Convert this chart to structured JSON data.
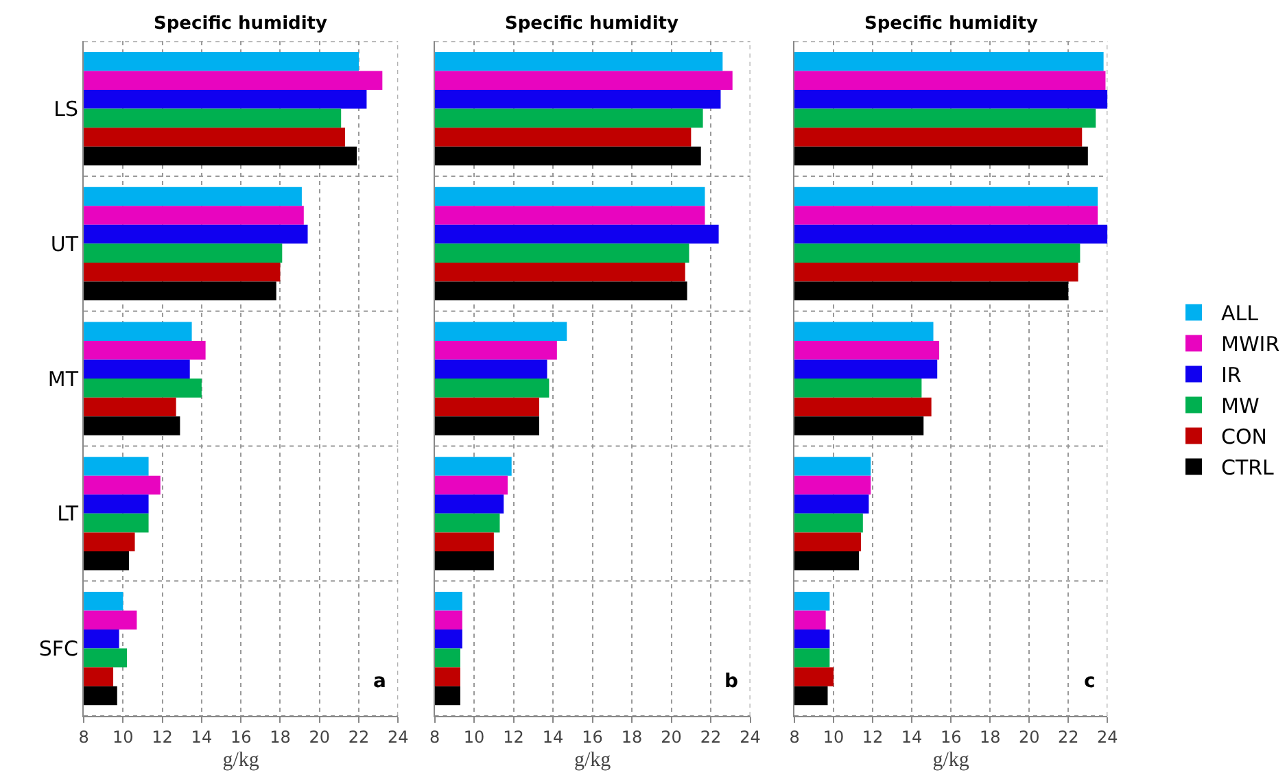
{
  "chart_data": [
    {
      "type": "bar",
      "orientation": "horizontal",
      "title": "Specific humidity",
      "xlabel": "g/kg",
      "categories": [
        "LS",
        "UT",
        "MT",
        "LT",
        "SFC"
      ],
      "xlim": [
        8,
        24
      ],
      "xticks": [
        8,
        10,
        12,
        14,
        16,
        18,
        20,
        22,
        24
      ],
      "grid": true,
      "legend": "right",
      "annotations": [
        "a"
      ],
      "series": [
        {
          "name": "ALL",
          "color": "#00b0f0",
          "values": [
            22.0,
            19.1,
            13.5,
            11.3,
            10.0
          ]
        },
        {
          "name": "MWIR",
          "color": "#e805bf",
          "values": [
            23.2,
            19.2,
            14.2,
            11.9,
            10.7
          ]
        },
        {
          "name": "IR",
          "color": "#1000f0",
          "values": [
            22.4,
            19.4,
            13.4,
            11.3,
            9.8
          ]
        },
        {
          "name": "MW",
          "color": "#00b050",
          "values": [
            21.1,
            18.1,
            14.0,
            11.3,
            10.2
          ]
        },
        {
          "name": "CON",
          "color": "#c00000",
          "values": [
            21.3,
            18.0,
            12.7,
            10.6,
            9.5
          ]
        },
        {
          "name": "CTRL",
          "color": "#000000",
          "values": [
            21.9,
            17.8,
            12.9,
            10.3,
            9.7
          ]
        }
      ]
    },
    {
      "type": "bar",
      "orientation": "horizontal",
      "title": "Specific humidity",
      "xlabel": "g/kg",
      "categories": [
        null,
        null,
        null,
        null,
        null
      ],
      "xlim": [
        8,
        24
      ],
      "xticks": [
        8,
        10,
        12,
        14,
        16,
        18,
        20,
        22,
        24
      ],
      "grid": true,
      "tick_labels": "x",
      "annotations": [
        "b"
      ],
      "series": [
        {
          "color": "#00b0f0",
          "values": [
            22.6,
            21.7,
            14.7,
            11.9,
            9.4
          ]
        },
        {
          "color": "#e805bf",
          "values": [
            23.1,
            21.7,
            14.2,
            11.7,
            9.4
          ]
        },
        {
          "color": "#1000f0",
          "values": [
            22.5,
            22.4,
            13.7,
            11.5,
            9.4
          ]
        },
        {
          "color": "#00b050",
          "values": [
            21.6,
            20.9,
            13.8,
            11.3,
            9.3
          ]
        },
        {
          "color": "#c00000",
          "values": [
            21.0,
            20.7,
            13.3,
            11.0,
            9.3
          ]
        },
        {
          "color": "#000000",
          "values": [
            21.5,
            20.8,
            13.3,
            11.0,
            9.3
          ]
        }
      ]
    },
    {
      "type": "bar",
      "orientation": "horizontal",
      "title": "Specific humidity",
      "xlabel": "g/kg",
      "categories": [
        null,
        null,
        null,
        null,
        null
      ],
      "xlim": [
        8,
        24
      ],
      "xticks": [
        8,
        10,
        12,
        14,
        16,
        18,
        20,
        22,
        24
      ],
      "grid": true,
      "tick_labels": "x",
      "annotations": [
        "c"
      ],
      "series": [
        {
          "color": "#00b0f0",
          "values": [
            23.8,
            23.5,
            15.1,
            11.9,
            9.8
          ]
        },
        {
          "color": "#e805bf",
          "values": [
            23.9,
            23.5,
            15.4,
            11.9,
            9.6
          ]
        },
        {
          "color": "#1000f0",
          "values": [
            24.0,
            24.0,
            15.3,
            11.8,
            9.8
          ]
        },
        {
          "color": "#00b050",
          "values": [
            23.4,
            22.6,
            14.5,
            11.5,
            9.8
          ]
        },
        {
          "color": "#c00000",
          "values": [
            22.7,
            22.5,
            15.0,
            11.4,
            10.0
          ]
        },
        {
          "color": "#000000",
          "values": [
            23.0,
            22.0,
            14.6,
            11.3,
            9.7
          ]
        }
      ]
    }
  ]
}
